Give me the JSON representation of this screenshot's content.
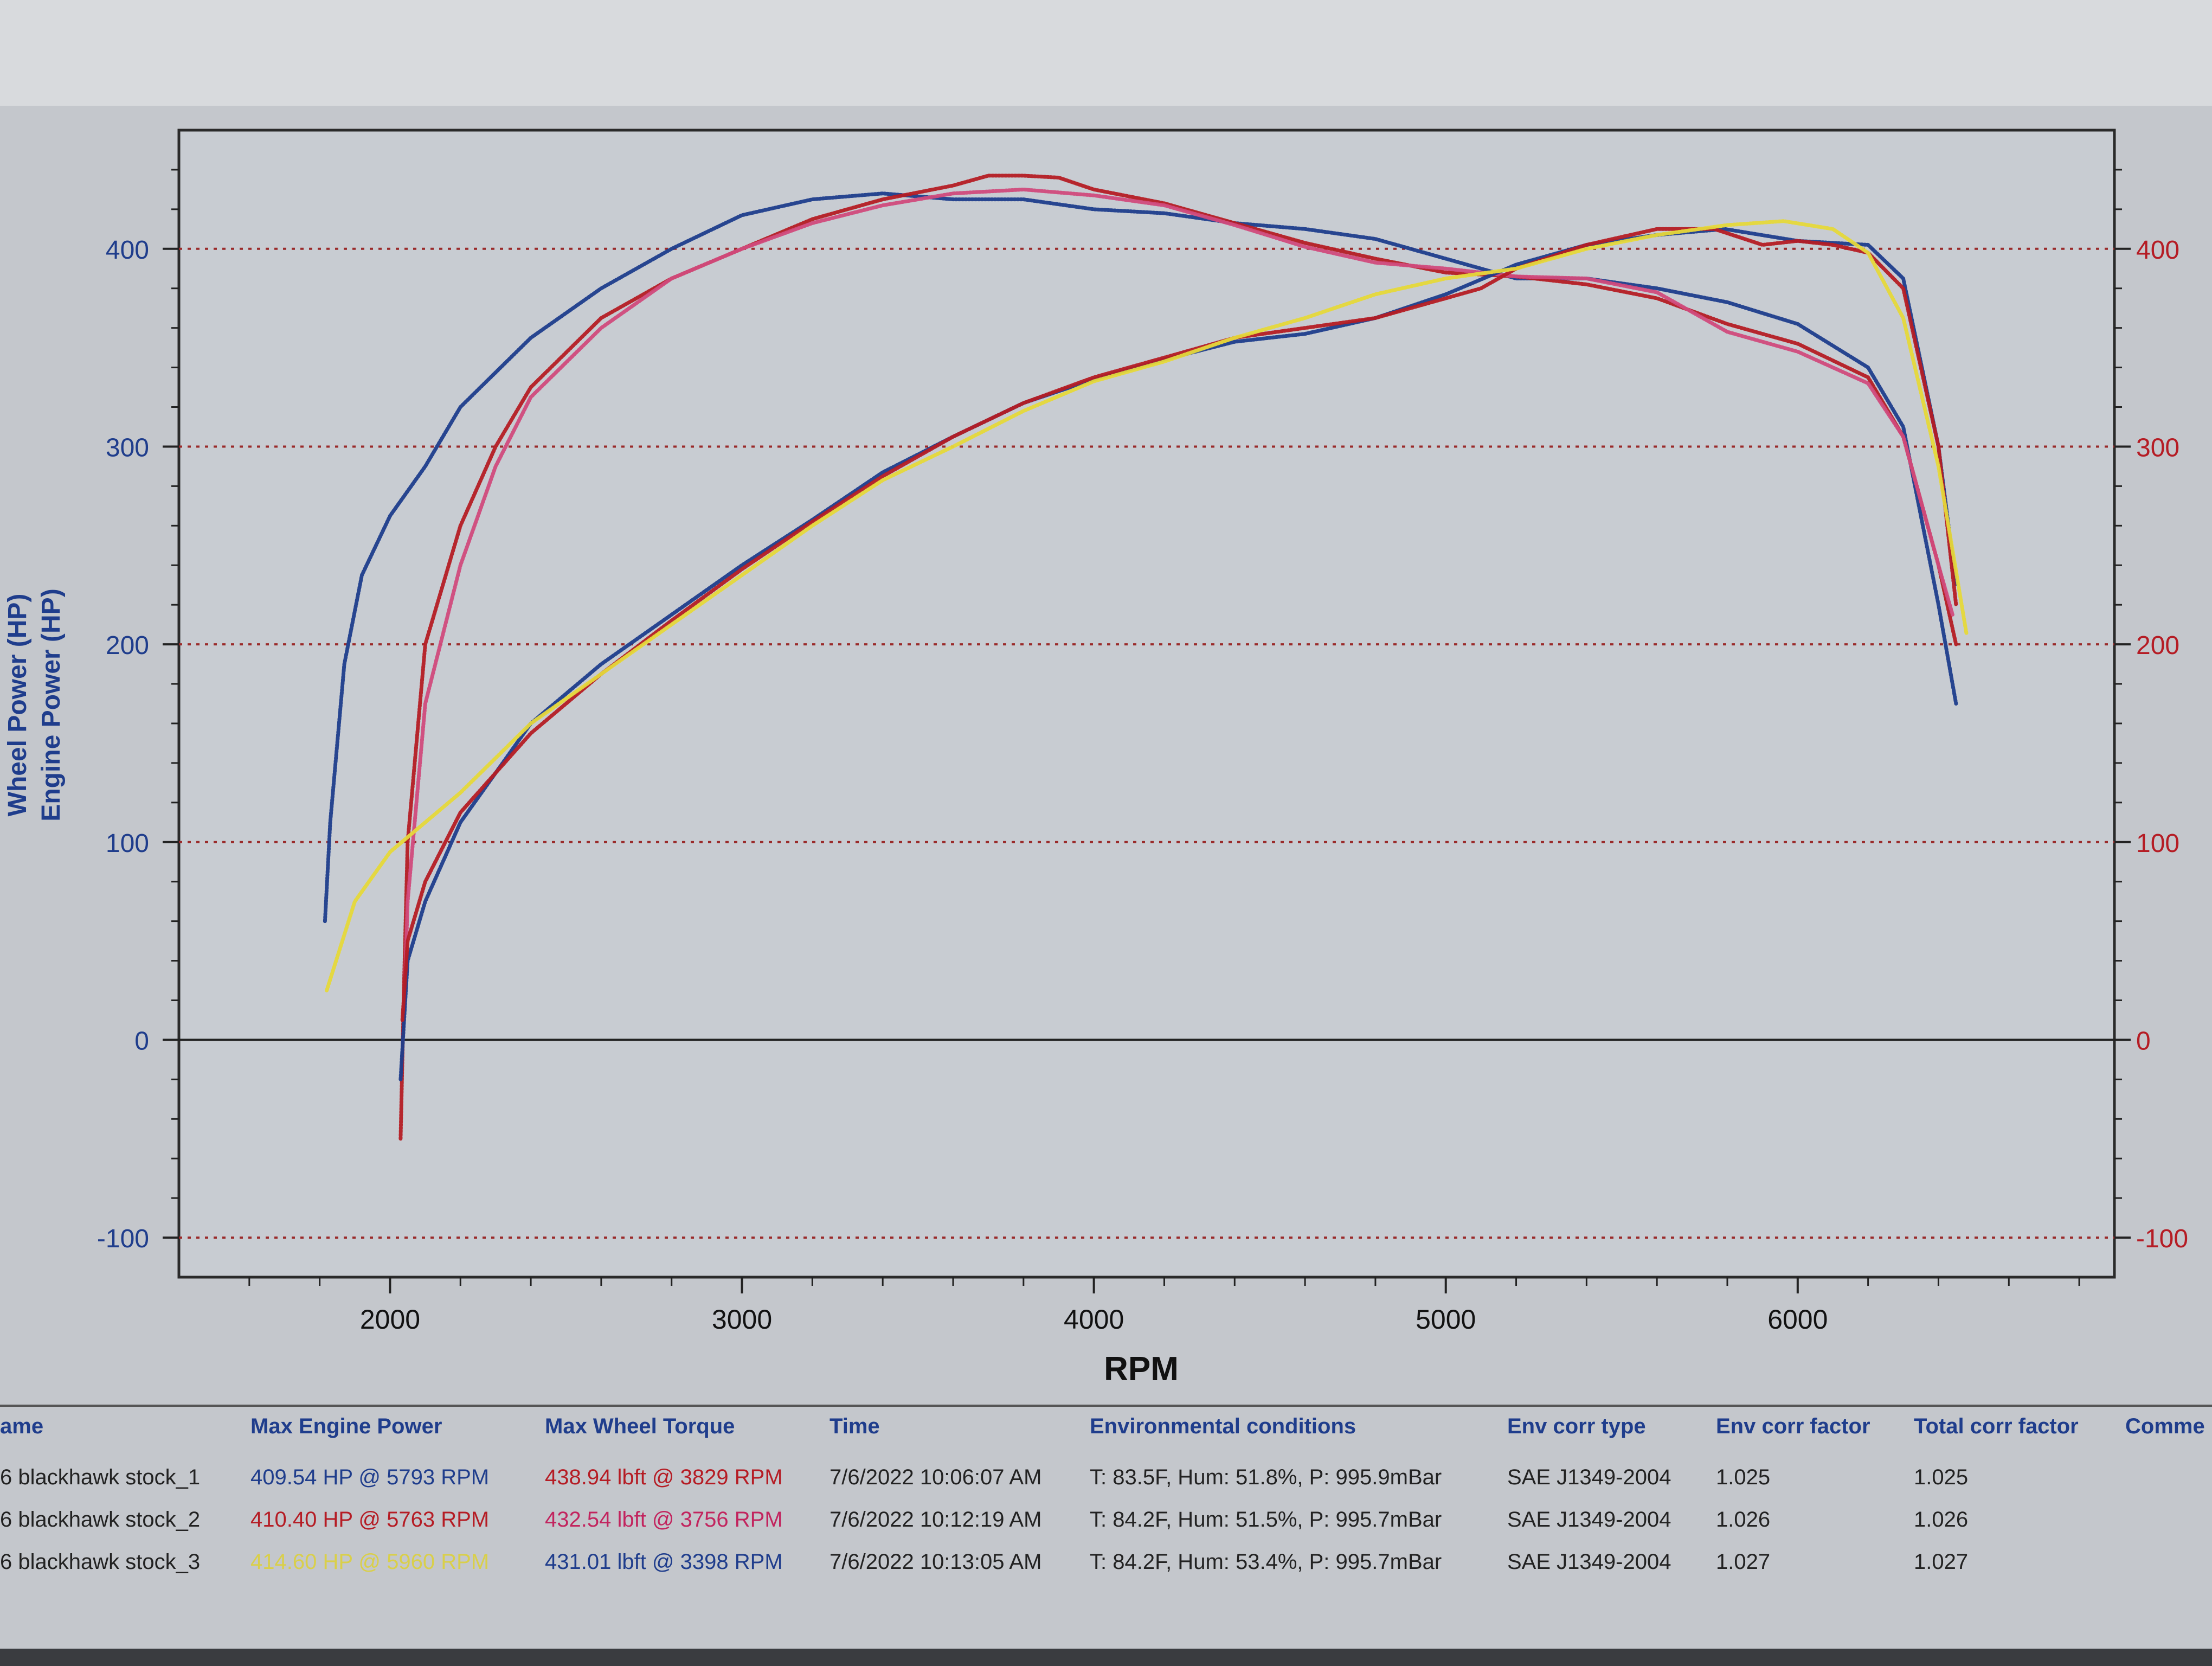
{
  "chart_data": {
    "type": "line",
    "xlabel": "RPM",
    "ylabel_left": [
      "Wheel Power (HP)",
      "Engine Power (HP)"
    ],
    "xlim": [
      1400,
      6900
    ],
    "ylim": [
      -120,
      460
    ],
    "x_ticks": [
      2000,
      3000,
      4000,
      5000,
      6000
    ],
    "y_ticks_left": [
      400,
      300,
      200,
      100,
      0,
      -100
    ],
    "y_ticks_right": [
      400,
      300,
      200,
      100,
      0,
      -100
    ],
    "grid": "dotted horizontal at 100 intervals",
    "series": [
      {
        "kind": "torque",
        "run": 1,
        "color": "#1f3d8c",
        "x": [
          1815,
          1830,
          1870,
          1920,
          2000,
          2100,
          2200,
          2400,
          2600,
          2800,
          3000,
          3200,
          3400,
          3600,
          3800,
          4000,
          4200,
          4400,
          4600,
          4800,
          5000,
          5200,
          5400,
          5600,
          5800,
          6000,
          6200,
          6300,
          6400,
          6450
        ],
        "y": [
          60,
          110,
          190,
          235,
          265,
          290,
          320,
          355,
          380,
          400,
          417,
          425,
          428,
          425,
          425,
          420,
          418,
          413,
          410,
          405,
          395,
          385,
          385,
          380,
          373,
          362,
          340,
          310,
          220,
          170
        ]
      },
      {
        "kind": "torque",
        "run": 2,
        "color": "#b51c24",
        "x": [
          2030,
          2040,
          2050,
          2100,
          2200,
          2300,
          2400,
          2600,
          2800,
          3000,
          3200,
          3400,
          3600,
          3700,
          3800,
          3900,
          4000,
          4200,
          4400,
          4600,
          4800,
          5000,
          5200,
          5400,
          5600,
          5800,
          6000,
          6200,
          6300,
          6400,
          6450
        ],
        "y": [
          -50,
          30,
          100,
          200,
          260,
          300,
          330,
          365,
          385,
          400,
          415,
          425,
          432,
          437,
          437,
          436,
          430,
          423,
          413,
          403,
          395,
          388,
          386,
          382,
          375,
          362,
          352,
          335,
          305,
          240,
          200
        ]
      },
      {
        "kind": "torque",
        "run": 3,
        "color": "#d14a7c",
        "x": [
          2040,
          2050,
          2100,
          2200,
          2300,
          2400,
          2600,
          2800,
          3000,
          3200,
          3400,
          3600,
          3800,
          4000,
          4200,
          4400,
          4600,
          4800,
          5000,
          5200,
          5400,
          5600,
          5800,
          6000,
          6200,
          6300,
          6400,
          6440
        ],
        "y": [
          15,
          70,
          170,
          240,
          290,
          325,
          360,
          385,
          400,
          413,
          422,
          428,
          430,
          427,
          422,
          412,
          401,
          393,
          390,
          386,
          385,
          378,
          358,
          348,
          332,
          305,
          240,
          215
        ]
      },
      {
        "kind": "power",
        "run": 1,
        "color": "#1f3d8c",
        "x": [
          2030,
          2050,
          2100,
          2200,
          2400,
          2600,
          2800,
          3000,
          3200,
          3400,
          3600,
          3800,
          4000,
          4200,
          4400,
          4600,
          4800,
          5000,
          5200,
          5400,
          5600,
          5793,
          6000,
          6200,
          6300,
          6400,
          6450
        ],
        "y": [
          -20,
          40,
          70,
          110,
          160,
          190,
          215,
          240,
          263,
          287,
          305,
          322,
          334,
          344,
          353,
          357,
          365,
          377,
          392,
          402,
          407,
          410,
          404,
          402,
          385,
          300,
          230
        ]
      },
      {
        "kind": "power",
        "run": 2,
        "color": "#b51c24",
        "x": [
          2035,
          2050,
          2100,
          2200,
          2400,
          2600,
          2800,
          3000,
          3200,
          3400,
          3600,
          3800,
          4000,
          4200,
          4400,
          4600,
          4800,
          5000,
          5100,
          5200,
          5400,
          5600,
          5763,
          5900,
          6000,
          6100,
          6200,
          6300,
          6400,
          6450
        ],
        "y": [
          10,
          50,
          80,
          115,
          155,
          185,
          212,
          238,
          262,
          285,
          305,
          322,
          335,
          345,
          355,
          360,
          365,
          375,
          380,
          390,
          402,
          410,
          410,
          402,
          404,
          402,
          398,
          380,
          300,
          220
        ]
      },
      {
        "kind": "power",
        "run": 3,
        "color": "#e6d83a",
        "x": [
          1820,
          1900,
          2000,
          2200,
          2400,
          2600,
          2800,
          3000,
          3200,
          3400,
          3600,
          3800,
          4000,
          4200,
          4400,
          4600,
          4800,
          5000,
          5200,
          5400,
          5600,
          5800,
          5960,
          6100,
          6200,
          6300,
          6400,
          6480
        ],
        "y": [
          25,
          70,
          95,
          125,
          160,
          185,
          210,
          235,
          260,
          283,
          300,
          318,
          333,
          343,
          355,
          365,
          377,
          385,
          390,
          400,
          407,
          412,
          414,
          410,
          398,
          365,
          290,
          205
        ]
      }
    ]
  },
  "summary": {
    "headers": [
      "ame",
      "Max Engine Power",
      "Max Wheel Torque",
      "Time",
      "Environmental conditions",
      "Env corr type",
      "Env corr factor",
      "Total corr factor",
      "Comme"
    ],
    "rows": [
      {
        "name": "6 blackhawk stock_1",
        "power": "409.54 HP @ 5793 RPM",
        "torque": "438.94 lbft @ 3829 RPM",
        "time": "7/6/2022 10:06:07 AM",
        "env": "T: 83.5F, Hum: 51.8%, P: 995.9mBar",
        "corr_type": "SAE J1349-2004",
        "corr": "1.025",
        "total": "1.025",
        "power_color": "#1f3d8c",
        "torque_color": "#b51c24"
      },
      {
        "name": "6 blackhawk stock_2",
        "power": "410.40 HP @ 5763 RPM",
        "torque": "432.54 lbft @ 3756 RPM",
        "time": "7/6/2022 10:12:19 AM",
        "env": "T: 84.2F, Hum: 51.5%, P: 995.7mBar",
        "corr_type": "SAE J1349-2004",
        "corr": "1.026",
        "total": "1.026",
        "power_color": "#b51c24",
        "torque_color": "#c2245e"
      },
      {
        "name": "6 blackhawk stock_3",
        "power": "414.60 HP @ 5960 RPM",
        "torque": "431.01 lbft @ 3398 RPM",
        "time": "7/6/2022 10:13:05 AM",
        "env": "T: 84.2F, Hum: 53.4%, P: 995.7mBar",
        "corr_type": "SAE J1349-2004",
        "corr": "1.027",
        "total": "1.027",
        "power_color": "#d9cf4a",
        "torque_color": "#1f3d8c"
      }
    ]
  },
  "colors": {
    "left_axis": "#1f3d8c",
    "right_axis": "#b51c24",
    "grid": "#9a2a2a"
  }
}
